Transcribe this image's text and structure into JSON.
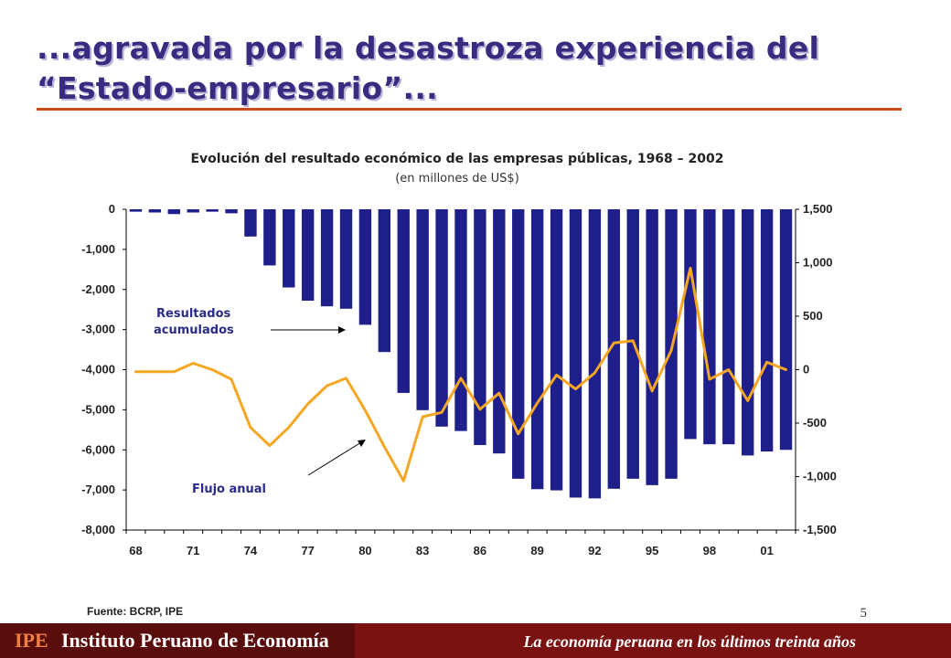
{
  "header": {
    "title_line1": "...agravada por la desastroza experiencia del",
    "title_line2": "“Estado-empresario”..."
  },
  "chart": {
    "title": "Evolución del resultado económico de las empresas públicas, 1968 – 2002",
    "subtitle": "(en millones de US$)"
  },
  "annotations": {
    "bars_label_line1": "Resultados",
    "bars_label_line2": "acumulados",
    "line_label": "Flujo anual"
  },
  "source": "Fuente: BCRP, IPE",
  "page_number": "5",
  "footer": {
    "logo_text": "IPE",
    "org_name": "Instituto Peruano de Economía",
    "presentation_title": "La economía peruana en los últimos treinta años"
  },
  "colors": {
    "bar": "#1f1f8c",
    "line": "#f5a623",
    "title": "#3a2a80",
    "rule": "#c8501f",
    "footer": "#7b1212"
  },
  "chart_data": {
    "type": "bar",
    "x": [
      1968,
      1969,
      1970,
      1971,
      1972,
      1973,
      1974,
      1975,
      1976,
      1977,
      1978,
      1979,
      1980,
      1981,
      1982,
      1983,
      1984,
      1985,
      1986,
      1987,
      1988,
      1989,
      1990,
      1991,
      1992,
      1993,
      1994,
      1995,
      1996,
      1997,
      1998,
      1999,
      2000,
      2001,
      2002
    ],
    "x_tick_labels": [
      "68",
      "71",
      "74",
      "77",
      "80",
      "83",
      "86",
      "89",
      "92",
      "95",
      "98",
      "01"
    ],
    "series": [
      {
        "name": "Resultados acumulados",
        "type": "bar",
        "axis": "left",
        "values": [
          -60,
          -80,
          -120,
          -80,
          -60,
          -100,
          -680,
          -1400,
          -1950,
          -2280,
          -2420,
          -2480,
          -2880,
          -3560,
          -4580,
          -5010,
          -5420,
          -5530,
          -5880,
          -6090,
          -6720,
          -6980,
          -7010,
          -7190,
          -7210,
          -6970,
          -6720,
          -6880,
          -6720,
          -5730,
          -5860,
          -5860,
          -6140,
          -6040,
          -6000
        ]
      },
      {
        "name": "Flujo anual",
        "type": "line",
        "axis": "right",
        "values": [
          -20,
          -20,
          -20,
          60,
          0,
          -90,
          -540,
          -710,
          -540,
          -320,
          -150,
          -80,
          -380,
          -720,
          -1040,
          -440,
          -400,
          -80,
          -370,
          -220,
          -600,
          -310,
          -50,
          -180,
          -30,
          250,
          270,
          -200,
          180,
          950,
          -90,
          0,
          -290,
          70,
          0
        ]
      }
    ],
    "y_left": {
      "lim": [
        -8000,
        0
      ],
      "ticks": [
        0,
        -1000,
        -2000,
        -3000,
        -4000,
        -5000,
        -6000,
        -7000,
        -8000
      ],
      "tick_labels": [
        "0",
        "-1,000",
        "-2,000",
        "-3,000",
        "-4,000",
        "-5,000",
        "-6,000",
        "-7,000",
        "-8,000"
      ]
    },
    "y_right": {
      "lim": [
        -1500,
        1500
      ],
      "ticks": [
        1500,
        1000,
        500,
        0,
        -500,
        -1000,
        -1500
      ],
      "tick_labels": [
        "1,500",
        "1,000",
        "500",
        "0",
        "-500",
        "-1,000",
        "-1,500"
      ]
    },
    "grid": false
  }
}
